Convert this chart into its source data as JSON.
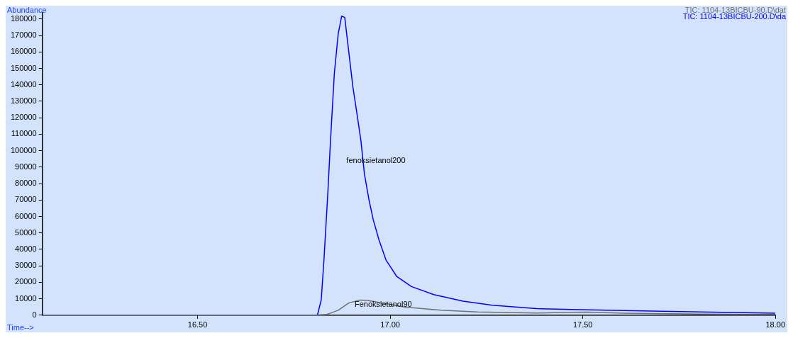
{
  "chart_data": {
    "type": "line",
    "xlabel": "Time-->",
    "ylabel": "Abundance",
    "xlim": [
      16.097,
      18.0
    ],
    "xticks": [
      {
        "value": 16.5,
        "label": "16.50"
      },
      {
        "value": 17.0,
        "label": "17.00"
      },
      {
        "value": 17.5,
        "label": "17.50"
      },
      {
        "value": 18.0,
        "label": "18.00"
      }
    ],
    "ylim": [
      0,
      184000
    ],
    "yticks": [
      0,
      10000,
      20000,
      30000,
      40000,
      50000,
      60000,
      70000,
      80000,
      90000,
      100000,
      110000,
      120000,
      130000,
      140000,
      150000,
      160000,
      170000,
      180000
    ],
    "grid": false,
    "legend": "top right",
    "marker": "none",
    "line_style": "solid",
    "series": [
      {
        "name": "TIC: 1104-13BICBU-90.D\\dat",
        "color": "#707070",
        "x": [
          16.097,
          16.803,
          16.836,
          16.865,
          16.893,
          16.922,
          16.941,
          16.979,
          17.036,
          17.132,
          17.227,
          17.38,
          17.456,
          17.513,
          17.609,
          17.8,
          18.0
        ],
        "values": [
          0,
          0,
          500,
          3000,
          7500,
          9200,
          9000,
          7500,
          5000,
          3000,
          2000,
          1300,
          1700,
          1800,
          1200,
          700,
          400
        ]
      },
      {
        "name": "TIC: 1104-13BICBU-200.D\\da",
        "color": "#0000ff",
        "x": [
          16.097,
          16.807,
          16.811,
          16.821,
          16.828,
          16.838,
          16.845,
          16.855,
          16.865,
          16.874,
          16.882,
          16.891,
          16.903,
          16.914,
          16.924,
          16.933,
          16.945,
          16.956,
          16.971,
          16.989,
          17.017,
          17.055,
          17.113,
          17.189,
          17.265,
          17.38,
          17.513,
          17.704,
          17.895,
          18.0
        ],
        "values": [
          0,
          0,
          0,
          9300,
          33600,
          74000,
          106000,
          147000,
          171000,
          181800,
          181000,
          163000,
          139000,
          122000,
          106000,
          86000,
          70000,
          58000,
          45700,
          33600,
          23500,
          17400,
          12500,
          8500,
          6100,
          4000,
          3200,
          2400,
          1600,
          1200
        ]
      }
    ],
    "annotations": [
      "fenoksietanol200",
      "Fenoksietanol90"
    ]
  }
}
